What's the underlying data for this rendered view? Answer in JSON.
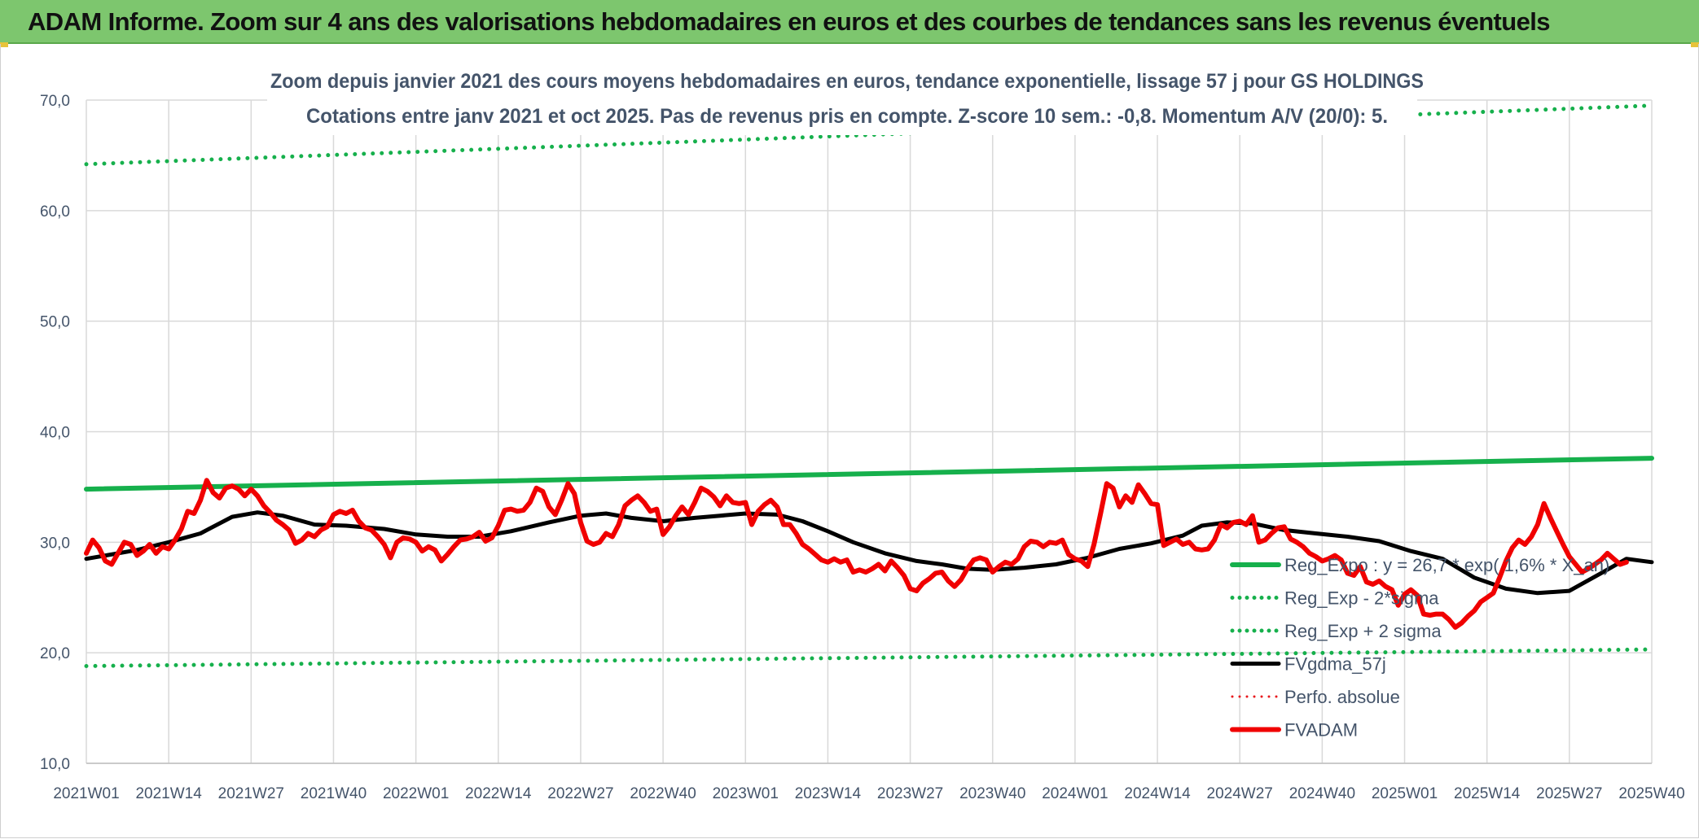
{
  "banner": {
    "title": "ADAM Informe. Zoom sur 4 ans des valorisations hebdomadaires en euros et des courbes de tendances sans les revenus éventuels",
    "background": "#7dc66e"
  },
  "chart_data": {
    "type": "line",
    "title_line1": "Zoom depuis janvier 2021 des cours moyens hebdomadaires en euros, tendance exponentielle, lissage 57 j pour GS HOLDINGS",
    "title_line2": "Cotations entre janv 2021 et oct 2025. Pas de revenus pris en compte. Z-score 10 sem.: -0,8. Momentum A/V (20/0): 5.",
    "xlabel": "",
    "ylabel": "",
    "ylim": [
      10,
      70
    ],
    "yticks": [
      "10,0",
      "20,0",
      "30,0",
      "40,0",
      "50,0",
      "60,0",
      "70,0"
    ],
    "xticks": [
      "2021W01",
      "2021W14",
      "2021W27",
      "2021W40",
      "2022W01",
      "2022W14",
      "2022W27",
      "2022W40",
      "2023W01",
      "2023W14",
      "2023W27",
      "2023W40",
      "2024W01",
      "2024W14",
      "2024W27",
      "2024W40",
      "2025W01",
      "2025W14",
      "2025W27",
      "2025W40"
    ],
    "x_week_range": [
      0,
      247
    ],
    "grid": "vertical and horizontal",
    "legend_position": "right",
    "series": [
      {
        "name": "Reg_Expo : y = 26,7 * exp( 1,6% * X_an)",
        "color": "#16b04c",
        "style": "solid",
        "width": 6,
        "points": [
          [
            0,
            34.8
          ],
          [
            247,
            37.6
          ]
        ]
      },
      {
        "name": "Reg_Exp - 2*sigma",
        "color": "#16b04c",
        "style": "dotted",
        "width": 5,
        "points": [
          [
            0,
            18.8
          ],
          [
            247,
            20.3
          ]
        ]
      },
      {
        "name": "Reg_Exp + 2 sigma",
        "color": "#16b04c",
        "style": "dotted",
        "width": 5,
        "points": [
          [
            0,
            64.2
          ],
          [
            247,
            69.5
          ]
        ]
      },
      {
        "name": "FVgdma_57j",
        "color": "#000000",
        "style": "solid",
        "width": 5,
        "points": [
          [
            0,
            28.5
          ],
          [
            8,
            29.3
          ],
          [
            13,
            30.0
          ],
          [
            18,
            30.8
          ],
          [
            23,
            32.3
          ],
          [
            27,
            32.7
          ],
          [
            31,
            32.4
          ],
          [
            36,
            31.6
          ],
          [
            41,
            31.5
          ],
          [
            47,
            31.2
          ],
          [
            52,
            30.7
          ],
          [
            57,
            30.5
          ],
          [
            62,
            30.5
          ],
          [
            67,
            31.0
          ],
          [
            73,
            31.8
          ],
          [
            78,
            32.4
          ],
          [
            82,
            32.6
          ],
          [
            86,
            32.2
          ],
          [
            91,
            31.9
          ],
          [
            96,
            32.2
          ],
          [
            100,
            32.4
          ],
          [
            104,
            32.6
          ],
          [
            109,
            32.5
          ],
          [
            113,
            31.9
          ],
          [
            117,
            31.0
          ],
          [
            121,
            30.0
          ],
          [
            126,
            29.0
          ],
          [
            131,
            28.3
          ],
          [
            135,
            28.0
          ],
          [
            139,
            27.6
          ],
          [
            143,
            27.5
          ],
          [
            148,
            27.7
          ],
          [
            153,
            28.0
          ],
          [
            158,
            28.6
          ],
          [
            163,
            29.4
          ],
          [
            168,
            29.9
          ],
          [
            173,
            30.6
          ],
          [
            176,
            31.5
          ],
          [
            180,
            31.8
          ],
          [
            184,
            31.7
          ],
          [
            189,
            31.1
          ],
          [
            194,
            30.8
          ],
          [
            199,
            30.5
          ],
          [
            204,
            30.1
          ],
          [
            209,
            29.2
          ],
          [
            214,
            28.5
          ],
          [
            219,
            26.8
          ],
          [
            224,
            25.8
          ],
          [
            229,
            25.4
          ],
          [
            234,
            25.6
          ],
          [
            239,
            27.2
          ],
          [
            243,
            28.5
          ],
          [
            247,
            28.2
          ]
        ]
      },
      {
        "name": "Perfo. absolue",
        "color": "#e8161b",
        "style": "dotted",
        "width": 3,
        "points": []
      },
      {
        "name": "FVADAM",
        "color": "#f00000",
        "style": "solid",
        "width": 6,
        "points": [
          [
            0,
            29.0
          ],
          [
            1,
            30.2
          ],
          [
            2,
            29.5
          ],
          [
            3,
            28.3
          ],
          [
            4,
            28.0
          ],
          [
            5,
            29.0
          ],
          [
            6,
            30.0
          ],
          [
            7,
            29.8
          ],
          [
            8,
            28.8
          ],
          [
            9,
            29.2
          ],
          [
            10,
            29.8
          ],
          [
            11,
            29.0
          ],
          [
            12,
            29.6
          ],
          [
            13,
            29.4
          ],
          [
            14,
            30.2
          ],
          [
            15,
            31.2
          ],
          [
            16,
            32.8
          ],
          [
            17,
            32.6
          ],
          [
            18,
            33.8
          ],
          [
            19,
            35.6
          ],
          [
            20,
            34.5
          ],
          [
            21,
            34.0
          ],
          [
            22,
            34.9
          ],
          [
            23,
            35.1
          ],
          [
            24,
            34.8
          ],
          [
            25,
            34.2
          ],
          [
            26,
            34.8
          ],
          [
            27,
            34.2
          ],
          [
            28,
            33.3
          ],
          [
            29,
            32.7
          ],
          [
            30,
            32.0
          ],
          [
            31,
            31.6
          ],
          [
            32,
            31.1
          ],
          [
            33,
            29.9
          ],
          [
            34,
            30.2
          ],
          [
            35,
            30.8
          ],
          [
            36,
            30.5
          ],
          [
            37,
            31.1
          ],
          [
            38,
            31.4
          ],
          [
            39,
            32.5
          ],
          [
            40,
            32.8
          ],
          [
            41,
            32.6
          ],
          [
            42,
            32.9
          ],
          [
            43,
            31.9
          ],
          [
            44,
            31.3
          ],
          [
            45,
            31.1
          ],
          [
            46,
            30.5
          ],
          [
            47,
            29.8
          ],
          [
            48,
            28.6
          ],
          [
            49,
            30.0
          ],
          [
            50,
            30.4
          ],
          [
            51,
            30.3
          ],
          [
            52,
            30.0
          ],
          [
            53,
            29.2
          ],
          [
            54,
            29.6
          ],
          [
            55,
            29.3
          ],
          [
            56,
            28.3
          ],
          [
            57,
            28.9
          ],
          [
            58,
            29.6
          ],
          [
            59,
            30.2
          ],
          [
            60,
            30.3
          ],
          [
            61,
            30.5
          ],
          [
            62,
            30.9
          ],
          [
            63,
            30.1
          ],
          [
            64,
            30.4
          ],
          [
            65,
            31.5
          ],
          [
            66,
            32.9
          ],
          [
            67,
            33.0
          ],
          [
            68,
            32.8
          ],
          [
            69,
            32.9
          ],
          [
            70,
            33.6
          ],
          [
            71,
            34.9
          ],
          [
            72,
            34.6
          ],
          [
            73,
            33.2
          ],
          [
            74,
            32.5
          ],
          [
            75,
            33.8
          ],
          [
            76,
            35.3
          ],
          [
            77,
            34.4
          ],
          [
            78,
            31.8
          ],
          [
            79,
            30.1
          ],
          [
            80,
            29.8
          ],
          [
            81,
            30.0
          ],
          [
            82,
            30.8
          ],
          [
            83,
            30.5
          ],
          [
            84,
            31.6
          ],
          [
            85,
            33.3
          ],
          [
            86,
            33.8
          ],
          [
            87,
            34.2
          ],
          [
            88,
            33.6
          ],
          [
            89,
            32.8
          ],
          [
            90,
            33.0
          ],
          [
            91,
            30.7
          ],
          [
            92,
            31.4
          ],
          [
            93,
            32.4
          ],
          [
            94,
            33.2
          ],
          [
            95,
            32.5
          ],
          [
            96,
            33.6
          ],
          [
            97,
            34.9
          ],
          [
            98,
            34.6
          ],
          [
            99,
            34.1
          ],
          [
            100,
            33.3
          ],
          [
            101,
            34.2
          ],
          [
            102,
            33.6
          ],
          [
            103,
            33.5
          ],
          [
            104,
            33.6
          ],
          [
            105,
            31.6
          ],
          [
            106,
            32.8
          ],
          [
            107,
            33.4
          ],
          [
            108,
            33.8
          ],
          [
            109,
            33.2
          ],
          [
            110,
            31.6
          ],
          [
            111,
            31.6
          ],
          [
            112,
            30.8
          ],
          [
            113,
            29.8
          ],
          [
            114,
            29.4
          ],
          [
            115,
            28.9
          ],
          [
            116,
            28.4
          ],
          [
            117,
            28.2
          ],
          [
            118,
            28.5
          ],
          [
            119,
            28.2
          ],
          [
            120,
            28.4
          ],
          [
            121,
            27.3
          ],
          [
            122,
            27.5
          ],
          [
            123,
            27.3
          ],
          [
            124,
            27.6
          ],
          [
            125,
            28.0
          ],
          [
            126,
            27.4
          ],
          [
            127,
            28.3
          ],
          [
            128,
            27.7
          ],
          [
            129,
            27.0
          ],
          [
            130,
            25.8
          ],
          [
            131,
            25.6
          ],
          [
            132,
            26.3
          ],
          [
            133,
            26.7
          ],
          [
            134,
            27.2
          ],
          [
            135,
            27.3
          ],
          [
            136,
            26.5
          ],
          [
            137,
            26.0
          ],
          [
            138,
            26.6
          ],
          [
            139,
            27.6
          ],
          [
            140,
            28.4
          ],
          [
            141,
            28.6
          ],
          [
            142,
            28.4
          ],
          [
            143,
            27.3
          ],
          [
            144,
            27.8
          ],
          [
            145,
            28.2
          ],
          [
            146,
            28.0
          ],
          [
            147,
            28.5
          ],
          [
            148,
            29.6
          ],
          [
            149,
            30.1
          ],
          [
            150,
            30.0
          ],
          [
            151,
            29.6
          ],
          [
            152,
            30.0
          ],
          [
            153,
            29.9
          ],
          [
            154,
            30.2
          ],
          [
            155,
            28.9
          ],
          [
            156,
            28.5
          ],
          [
            157,
            28.3
          ],
          [
            158,
            27.8
          ],
          [
            159,
            29.8
          ],
          [
            160,
            32.5
          ],
          [
            161,
            35.3
          ],
          [
            162,
            34.9
          ],
          [
            163,
            33.2
          ],
          [
            164,
            34.2
          ],
          [
            165,
            33.6
          ],
          [
            166,
            35.2
          ],
          [
            167,
            34.4
          ],
          [
            168,
            33.5
          ],
          [
            169,
            33.4
          ],
          [
            170,
            29.7
          ],
          [
            171,
            30.0
          ],
          [
            172,
            30.3
          ],
          [
            173,
            29.8
          ],
          [
            174,
            30.0
          ],
          [
            175,
            29.4
          ],
          [
            176,
            29.3
          ],
          [
            177,
            29.4
          ],
          [
            178,
            30.2
          ],
          [
            179,
            31.6
          ],
          [
            180,
            31.3
          ],
          [
            181,
            31.8
          ],
          [
            182,
            31.9
          ],
          [
            183,
            31.6
          ],
          [
            184,
            32.4
          ],
          [
            185,
            30.0
          ],
          [
            186,
            30.2
          ],
          [
            187,
            30.8
          ],
          [
            188,
            31.3
          ],
          [
            189,
            31.4
          ],
          [
            190,
            30.3
          ],
          [
            191,
            30.0
          ],
          [
            192,
            29.6
          ],
          [
            193,
            29.0
          ],
          [
            194,
            28.7
          ],
          [
            195,
            28.3
          ],
          [
            196,
            28.5
          ],
          [
            197,
            28.8
          ],
          [
            198,
            28.4
          ],
          [
            199,
            27.2
          ],
          [
            200,
            27.0
          ],
          [
            201,
            27.8
          ],
          [
            202,
            26.4
          ],
          [
            203,
            26.2
          ],
          [
            204,
            26.5
          ],
          [
            205,
            26.0
          ],
          [
            206,
            25.7
          ],
          [
            207,
            24.3
          ],
          [
            208,
            25.3
          ],
          [
            209,
            25.7
          ],
          [
            210,
            25.2
          ],
          [
            211,
            23.5
          ],
          [
            212,
            23.4
          ],
          [
            213,
            23.5
          ],
          [
            214,
            23.5
          ],
          [
            215,
            23.0
          ],
          [
            216,
            22.3
          ],
          [
            217,
            22.7
          ],
          [
            218,
            23.3
          ],
          [
            219,
            23.8
          ],
          [
            220,
            24.6
          ],
          [
            221,
            25.0
          ],
          [
            222,
            25.4
          ],
          [
            223,
            26.8
          ],
          [
            224,
            28.3
          ],
          [
            225,
            29.5
          ],
          [
            226,
            30.2
          ],
          [
            227,
            29.8
          ],
          [
            228,
            30.5
          ],
          [
            229,
            31.6
          ],
          [
            230,
            33.5
          ],
          [
            231,
            32.2
          ],
          [
            232,
            31.0
          ],
          [
            233,
            29.8
          ],
          [
            234,
            28.7
          ],
          [
            235,
            28.0
          ],
          [
            236,
            27.3
          ],
          [
            237,
            27.6
          ],
          [
            238,
            28.0
          ],
          [
            239,
            28.4
          ],
          [
            240,
            29.0
          ],
          [
            241,
            28.5
          ],
          [
            242,
            28.0
          ],
          [
            243,
            28.2
          ]
        ]
      }
    ]
  }
}
